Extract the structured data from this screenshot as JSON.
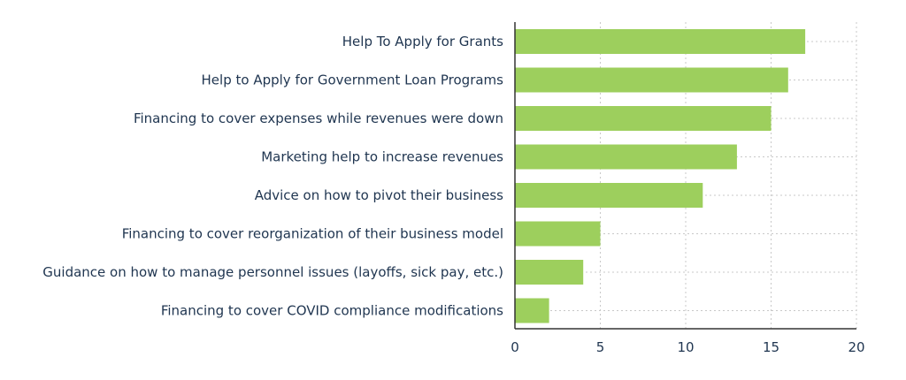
{
  "chart_data": {
    "type": "bar",
    "orientation": "horizontal",
    "title": "",
    "xlabel": "",
    "ylabel": "",
    "categories": [
      "Help To Apply for Grants",
      "Help to Apply for Government Loan Programs",
      "Financing to cover expenses while revenues were down",
      "Marketing help to increase revenues",
      "Advice on how to pivot their business",
      "Financing to cover reorganization of their business model",
      "Guidance on how to manage personnel issues (layoffs, sick pay, etc.)",
      "Financing to cover COVID compliance modifications"
    ],
    "values": [
      17,
      16,
      15,
      13,
      11,
      5,
      4,
      2
    ],
    "xlim": [
      0,
      20
    ],
    "xticks": [
      0,
      5,
      10,
      15,
      20
    ],
    "grid": true,
    "legend": "none",
    "bar_color": "#9dcf5d"
  }
}
